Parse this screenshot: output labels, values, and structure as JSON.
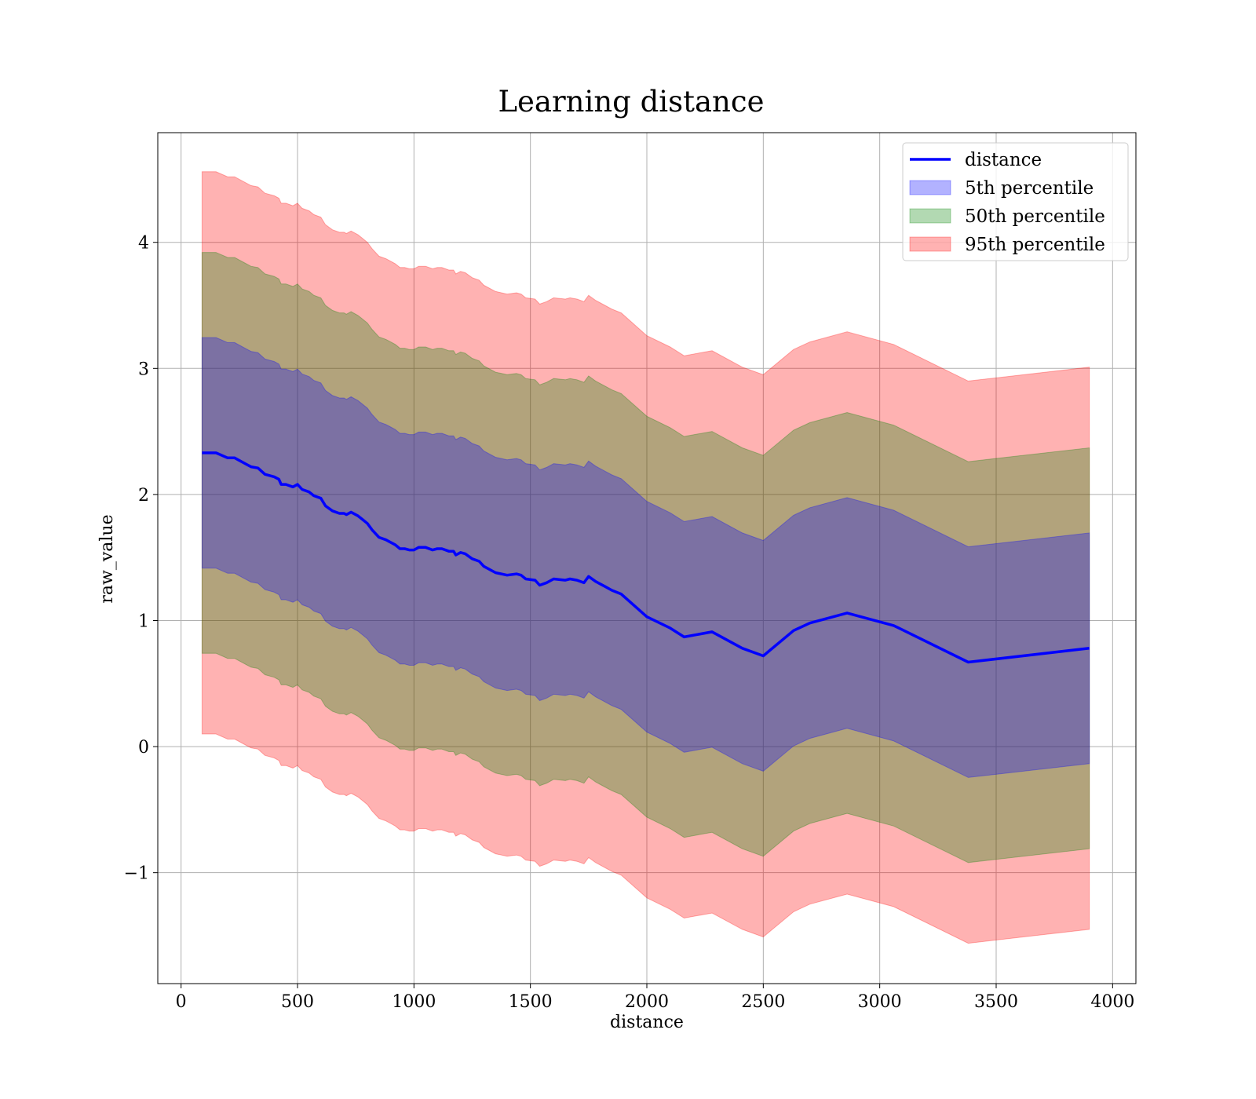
{
  "chart_data": {
    "type": "line",
    "title": "Learning distance",
    "xlabel": "distance",
    "ylabel": "raw_value",
    "xlim": [
      -100,
      4100
    ],
    "ylim": [
      -1.88,
      4.87
    ],
    "xticks": [
      0,
      500,
      1000,
      1500,
      2000,
      2500,
      3000,
      3500,
      4000
    ],
    "xtick_labels": [
      "0",
      "500",
      "1000",
      "1500",
      "2000",
      "2500",
      "3000",
      "3500",
      "4000"
    ],
    "yticks": [
      -1,
      0,
      1,
      2,
      3,
      4
    ],
    "ytick_labels": [
      "−1",
      "0",
      "1",
      "2",
      "3",
      "4"
    ],
    "grid": true,
    "legend_position": "top-right",
    "series": [
      {
        "name": "distance",
        "kind": "line",
        "color": "#0000ff",
        "x": [
          90,
          150,
          200,
          230,
          280,
          300,
          330,
          360,
          400,
          420,
          430,
          450,
          480,
          500,
          520,
          550,
          570,
          600,
          620,
          650,
          680,
          700,
          710,
          730,
          760,
          780,
          800,
          820,
          850,
          880,
          900,
          920,
          940,
          960,
          980,
          1000,
          1020,
          1050,
          1080,
          1100,
          1120,
          1150,
          1170,
          1180,
          1200,
          1220,
          1250,
          1280,
          1300,
          1350,
          1400,
          1440,
          1460,
          1480,
          1520,
          1540,
          1570,
          1600,
          1650,
          1670,
          1700,
          1730,
          1750,
          1780,
          1820,
          1850,
          1890,
          2000,
          2100,
          2160,
          2280,
          2410,
          2500,
          2630,
          2700,
          2860,
          3060,
          3380,
          3900
        ],
        "y": [
          2.33,
          2.33,
          2.29,
          2.29,
          2.24,
          2.22,
          2.21,
          2.16,
          2.14,
          2.12,
          2.08,
          2.08,
          2.06,
          2.08,
          2.04,
          2.02,
          1.99,
          1.97,
          1.91,
          1.87,
          1.85,
          1.85,
          1.84,
          1.86,
          1.83,
          1.8,
          1.77,
          1.72,
          1.66,
          1.64,
          1.62,
          1.6,
          1.57,
          1.57,
          1.56,
          1.56,
          1.58,
          1.58,
          1.56,
          1.57,
          1.57,
          1.55,
          1.55,
          1.52,
          1.54,
          1.53,
          1.49,
          1.47,
          1.43,
          1.38,
          1.36,
          1.37,
          1.36,
          1.33,
          1.32,
          1.28,
          1.3,
          1.33,
          1.32,
          1.33,
          1.32,
          1.3,
          1.35,
          1.31,
          1.27,
          1.24,
          1.21,
          1.03,
          0.94,
          0.87,
          0.91,
          0.78,
          0.72,
          0.92,
          0.98,
          1.06,
          0.96,
          0.67,
          0.78
        ]
      },
      {
        "name": "5th percentile",
        "kind": "band",
        "color": "#0000ff",
        "half_width": 0.915
      },
      {
        "name": "50th percentile",
        "kind": "band",
        "color": "#008000",
        "half_width": 1.59
      },
      {
        "name": "95th percentile",
        "kind": "band",
        "color": "#ff0000",
        "half_width": 2.23
      }
    ]
  },
  "legend": {
    "items": [
      {
        "label": "distance",
        "kind": "line",
        "color": "#0000ff"
      },
      {
        "label": "5th percentile",
        "kind": "patch",
        "color": "#0000ff"
      },
      {
        "label": "50th percentile",
        "kind": "patch",
        "color": "#008000"
      },
      {
        "label": "95th percentile",
        "kind": "patch",
        "color": "#ff0000"
      }
    ]
  }
}
